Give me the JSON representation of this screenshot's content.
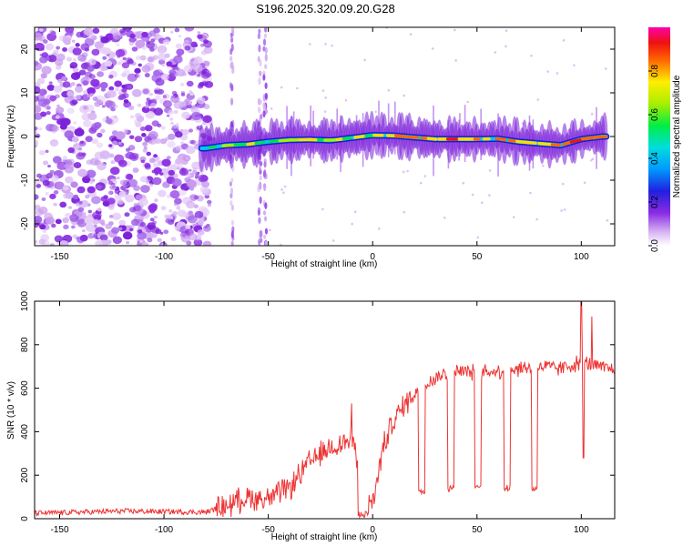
{
  "page_title": "S196.2025.320.09.20.G28",
  "chart_data": [
    {
      "type": "heatmap",
      "title": "S196.2025.320.09.20.G28",
      "xlabel": "Height of straight line (km)",
      "ylabel": "Frequency (Hz)",
      "xlim": [
        -162,
        116
      ],
      "ylim": [
        -25,
        25
      ],
      "xticks": [
        -150,
        -100,
        -50,
        0,
        50,
        100
      ],
      "yticks": [
        -20,
        -10,
        0,
        10,
        20
      ],
      "colorbar": {
        "label": "Normalized spectral amplitude",
        "range": [
          0,
          1
        ],
        "ticks": [
          0.0,
          0.2,
          0.4,
          0.6,
          0.8
        ]
      },
      "signal_track": {
        "x": [
          -80,
          -70,
          -60,
          -50,
          -40,
          -30,
          -20,
          -10,
          0,
          10,
          20,
          30,
          40,
          50,
          60,
          70,
          80,
          90,
          100,
          110
        ],
        "freq_hz": [
          -2.7,
          -2.0,
          -1.8,
          -1.2,
          -0.8,
          -0.7,
          -0.9,
          -0.3,
          0.3,
          0.2,
          -0.2,
          -0.6,
          -0.6,
          -0.6,
          -0.5,
          -1.2,
          -1.6,
          -2.0,
          -0.6,
          0.0
        ]
      }
    },
    {
      "type": "line",
      "xlabel": "Height of straight line (km)",
      "ylabel": "SNR (10 * v/v)",
      "xlim": [
        -162,
        116
      ],
      "ylim": [
        0,
        1000
      ],
      "xticks": [
        -150,
        -100,
        -50,
        0,
        50,
        100
      ],
      "yticks": [
        0,
        200,
        400,
        600,
        800,
        1000
      ],
      "color": "#ee3333",
      "envelope": {
        "x": [
          -162,
          -120,
          -80,
          -70,
          -60,
          -50,
          -40,
          -30,
          -20,
          -10,
          -5,
          0,
          5,
          10,
          15,
          20,
          30,
          40,
          50,
          60,
          70,
          80,
          90,
          100,
          110,
          116
        ],
        "snr": [
          25,
          35,
          30,
          60,
          100,
          90,
          140,
          260,
          330,
          360,
          220,
          60,
          330,
          450,
          520,
          580,
          650,
          680,
          670,
          680,
          690,
          700,
          690,
          720,
          690,
          690
        ]
      },
      "dropouts": [
        {
          "x_start": -7,
          "x_end": -2,
          "snr": 20
        },
        {
          "x_start": 22,
          "x_end": 25,
          "snr": 130
        },
        {
          "x_start": 36,
          "x_end": 39,
          "snr": 140
        },
        {
          "x_start": 49,
          "x_end": 52,
          "snr": 140
        },
        {
          "x_start": 63,
          "x_end": 66,
          "snr": 140
        },
        {
          "x_start": 76,
          "x_end": 79,
          "snr": 140
        }
      ],
      "spikes": [
        {
          "x": -10,
          "snr": 530
        },
        {
          "x": 100,
          "snr": 1000
        },
        {
          "x": 101,
          "snr": 280
        },
        {
          "x": 105,
          "snr": 930
        }
      ]
    }
  ]
}
